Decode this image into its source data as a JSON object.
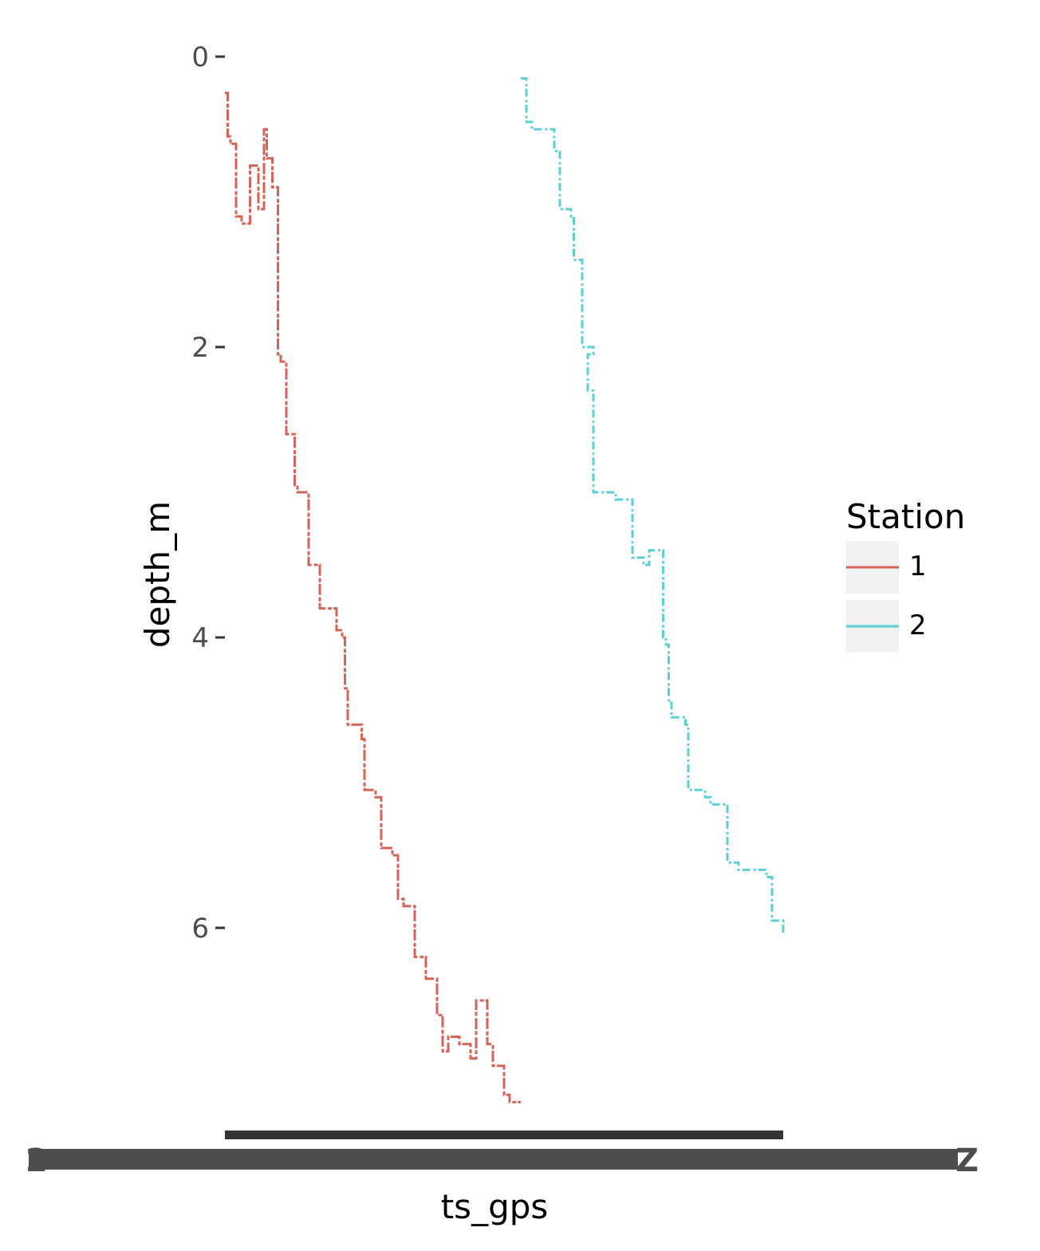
{
  "chart_data": {
    "type": "line",
    "xlabel": "ts_gps",
    "ylabel": "depth_m",
    "y_reversed": true,
    "ylim": [
      0,
      7.3
    ],
    "y_ticks": [
      "0",
      "2",
      "4",
      "6"
    ],
    "x_ticks_overplotted": "2",
    "x_ticks_overplotted_end": "Z",
    "grid": false,
    "legend": {
      "title": "Station",
      "placement": "right",
      "entries": [
        {
          "label": "1",
          "color": "#d4635a"
        },
        {
          "label": "2",
          "color": "#5bcfd4"
        }
      ]
    },
    "series": [
      {
        "name": "1",
        "color": "#d4635a",
        "x": [
          0.0,
          0.005,
          0.01,
          0.02,
          0.03,
          0.045,
          0.06,
          0.07,
          0.075,
          0.085,
          0.095,
          0.1,
          0.11,
          0.125,
          0.13,
          0.15,
          0.17,
          0.17,
          0.2,
          0.21,
          0.215,
          0.22,
          0.245,
          0.25,
          0.27,
          0.28,
          0.3,
          0.31,
          0.32,
          0.34,
          0.36,
          0.38,
          0.39,
          0.4,
          0.42,
          0.44,
          0.45,
          0.47,
          0.48,
          0.5,
          0.51,
          0.53
        ],
        "y": [
          0.25,
          0.55,
          0.6,
          1.1,
          1.15,
          0.75,
          1.05,
          0.5,
          0.7,
          0.9,
          2.05,
          2.1,
          2.6,
          2.95,
          3.0,
          3.5,
          3.55,
          3.8,
          3.95,
          4.0,
          4.35,
          4.6,
          4.7,
          5.05,
          5.1,
          5.45,
          5.5,
          5.8,
          5.85,
          6.2,
          6.35,
          6.6,
          6.85,
          6.75,
          6.8,
          6.9,
          6.5,
          6.8,
          6.95,
          7.15,
          7.2,
          7.2
        ]
      },
      {
        "name": "2",
        "color": "#5bcfd4",
        "x": [
          0.53,
          0.54,
          0.55,
          0.58,
          0.59,
          0.6,
          0.62,
          0.625,
          0.64,
          0.66,
          0.65,
          0.66,
          0.7,
          0.72,
          0.73,
          0.75,
          0.76,
          0.785,
          0.79,
          0.795,
          0.8,
          0.825,
          0.83,
          0.86,
          0.87,
          0.9,
          0.92,
          0.97,
          0.98,
          1.0
        ],
        "y": [
          0.15,
          0.45,
          0.5,
          0.5,
          0.65,
          1.05,
          1.1,
          1.4,
          2.0,
          2.05,
          2.3,
          3.0,
          3.05,
          3.05,
          3.45,
          3.5,
          3.4,
          4.0,
          4.05,
          4.45,
          4.55,
          4.6,
          5.05,
          5.1,
          5.15,
          5.55,
          5.6,
          5.65,
          5.95,
          6.05
        ]
      }
    ]
  }
}
